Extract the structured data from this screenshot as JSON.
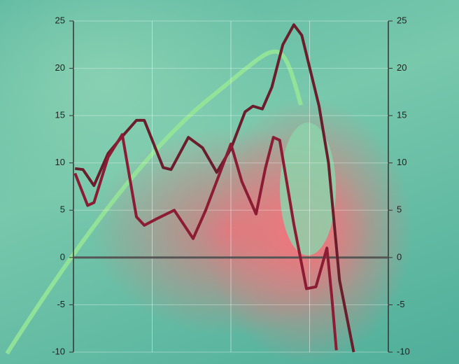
{
  "chart_data": {
    "type": "line",
    "ylim": [
      -10,
      25
    ],
    "yticks": [
      -10,
      -5,
      0,
      5,
      10,
      15,
      20,
      25
    ],
    "y2lim": [
      -10,
      25
    ],
    "y2ticks": [
      -10,
      -5,
      0,
      5,
      10,
      15,
      20,
      25
    ],
    "xlim": [
      0,
      20
    ],
    "xgrid": [
      5,
      10,
      15
    ],
    "grid": true,
    "hline": 0,
    "series": [
      {
        "color": "#6a1e2c",
        "x": [
          0.1,
          0.6,
          1.3,
          2.2,
          3.1,
          4,
          4.5,
          5.7,
          6.2,
          7.3,
          8.2,
          9.1,
          10,
          10.9,
          11.4,
          12,
          12.6,
          13.3,
          14,
          14.5,
          15.6,
          16.2,
          16.9,
          17.8
        ],
        "values": [
          9.4,
          9.3,
          7.6,
          11,
          12.8,
          14.5,
          14.5,
          9.5,
          9.3,
          12.7,
          11.6,
          9,
          11.5,
          15.4,
          16,
          15.7,
          18,
          22.5,
          24.6,
          23.5,
          16,
          10,
          -2.4,
          -10
        ]
      },
      {
        "color": "#8c1c34",
        "x": [
          0.1,
          0.9,
          1.3,
          2.2,
          3.1,
          4,
          4.5,
          5.3,
          6.4,
          7.6,
          8.4,
          10,
          10.7,
          11.6,
          12.2,
          12.7,
          13.1,
          14,
          14.8,
          15.4,
          16.1,
          16.4,
          16.7
        ],
        "values": [
          8.9,
          5.5,
          5.8,
          10.6,
          13,
          4.3,
          3.4,
          4.1,
          5,
          2,
          5,
          12,
          8,
          4.6,
          9.5,
          12.7,
          12.4,
          3.5,
          -3.3,
          -3.1,
          1,
          -4,
          -9.8
        ]
      }
    ]
  }
}
